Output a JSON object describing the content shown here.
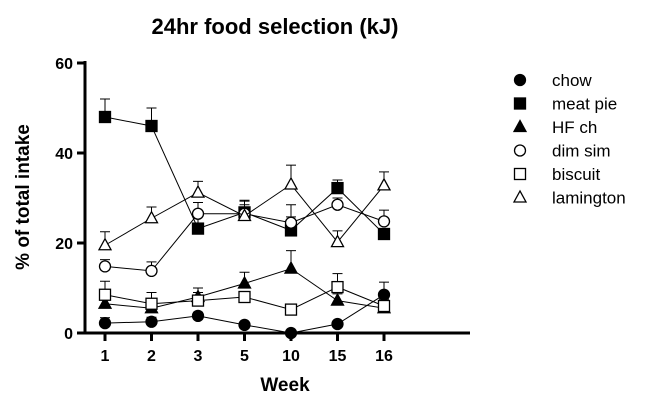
{
  "chart_data": {
    "type": "line",
    "title": "24hr food selection (kJ)",
    "xlabel": "Week",
    "ylabel": "% of total intake",
    "categories": [
      "1",
      "2",
      "3",
      "5",
      "10",
      "15",
      "16"
    ],
    "ylim": [
      0,
      60
    ],
    "yticks": [
      0,
      20,
      40,
      60
    ],
    "grid": false,
    "legend_position": "right",
    "series": [
      {
        "name": "chow",
        "marker": "circle-filled",
        "values": [
          2.2,
          2.5,
          3.8,
          1.8,
          0.0,
          2.0,
          8.5
        ],
        "error": [
          1.2,
          1.0,
          0.8,
          0.5,
          0.6,
          0.6,
          2.8
        ]
      },
      {
        "name": "meat pie",
        "marker": "square-filled",
        "values": [
          48.0,
          46.0,
          23.2,
          26.8,
          22.8,
          32.2,
          22.0
        ],
        "error": [
          4.0,
          4.0,
          4.0,
          2.5,
          3.0,
          1.8,
          1.0
        ]
      },
      {
        "name": "HF ch",
        "marker": "triangle-filled",
        "values": [
          6.5,
          5.5,
          8.0,
          11.0,
          14.3,
          7.2,
          5.5
        ],
        "error": [
          1.5,
          1.5,
          2.0,
          2.5,
          4.0,
          1.5,
          1.0
        ]
      },
      {
        "name": "dim sim",
        "marker": "circle-open",
        "values": [
          14.8,
          13.8,
          26.5,
          26.5,
          24.5,
          28.5,
          24.8
        ],
        "error": [
          1.5,
          2.0,
          2.5,
          3.0,
          4.0,
          1.5,
          2.5
        ]
      },
      {
        "name": "biscuit",
        "marker": "square-open",
        "values": [
          8.5,
          6.5,
          7.2,
          8.0,
          5.2,
          10.2,
          6.0
        ],
        "error": [
          3.0,
          2.5,
          1.8,
          1.0,
          1.0,
          3.0,
          1.5
        ]
      },
      {
        "name": "lamington",
        "marker": "triangle-open",
        "values": [
          19.5,
          25.5,
          31.2,
          26.0,
          33.0,
          20.2,
          32.8
        ],
        "error": [
          3.0,
          2.5,
          2.5,
          2.5,
          4.3,
          2.5,
          3.0
        ]
      }
    ]
  }
}
